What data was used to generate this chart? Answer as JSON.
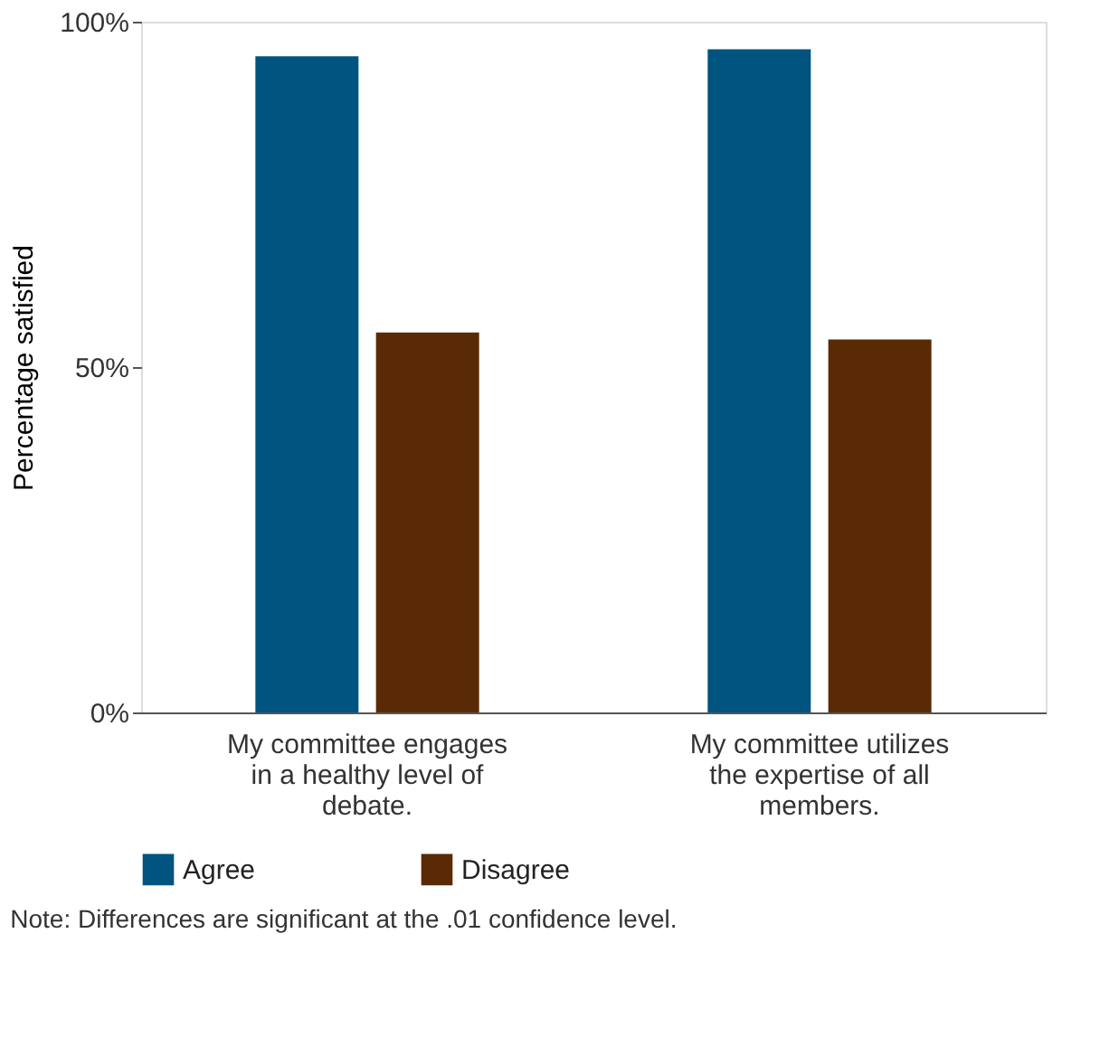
{
  "chart_data": {
    "type": "bar",
    "ylabel": "Percentage satisfied",
    "categories": [
      "My committee engages in a healthy level of debate.",
      "My committee utilizes the expertise of all members."
    ],
    "series": [
      {
        "name": "Agree",
        "color": "#00547f",
        "values": [
          95,
          96
        ]
      },
      {
        "name": "Disagree",
        "color": "#5a2a06",
        "values": [
          55,
          54
        ]
      }
    ],
    "ylim": [
      0,
      100
    ],
    "yticks": [
      {
        "value": 0,
        "label": "0%"
      },
      {
        "value": 50,
        "label": "50%"
      },
      {
        "value": 100,
        "label": "100%"
      }
    ],
    "grid": false,
    "legend": "bottom left",
    "annotations": [
      "Note: Differences are significant at the .01 confidence level."
    ]
  }
}
